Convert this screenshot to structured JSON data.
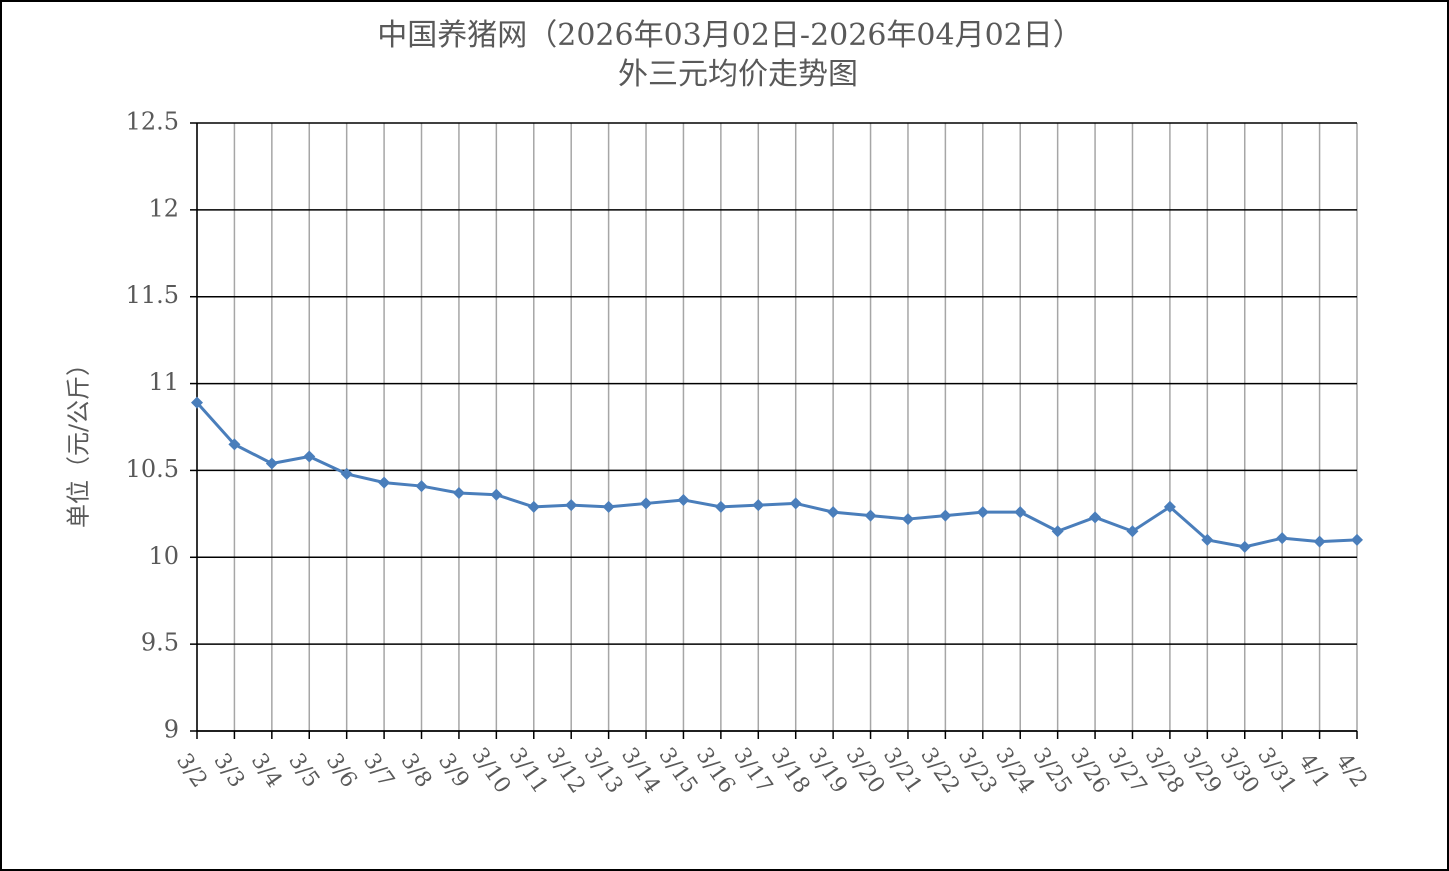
{
  "chart_data": {
    "type": "line",
    "title": "中国养猪网（2026年03月02日-2026年04月02日）",
    "subtitle": "外三元均价走势图",
    "y_label": "单位（元/公斤）",
    "categories": [
      "3/2",
      "3/3",
      "3/4",
      "3/5",
      "3/6",
      "3/7",
      "3/8",
      "3/9",
      "3/10",
      "3/11",
      "3/12",
      "3/13",
      "3/14",
      "3/15",
      "3/16",
      "3/17",
      "3/18",
      "3/19",
      "3/20",
      "3/21",
      "3/22",
      "3/23",
      "3/24",
      "3/25",
      "3/26",
      "3/27",
      "3/28",
      "3/29",
      "3/30",
      "3/31",
      "4/1",
      "4/2"
    ],
    "series": [
      {
        "color": "#4a7ebb",
        "values": [
          10.89,
          10.65,
          10.54,
          10.58,
          10.48,
          10.43,
          10.41,
          10.37,
          10.36,
          10.29,
          10.3,
          10.29,
          10.31,
          10.33,
          10.29,
          10.3,
          10.31,
          10.26,
          10.24,
          10.22,
          10.24,
          10.26,
          10.26,
          10.15,
          10.23,
          10.15,
          10.29,
          10.1,
          10.06,
          10.11,
          10.09,
          10.1
        ]
      }
    ],
    "ylim": [
      9,
      12.5
    ],
    "yticks": [
      9,
      9.5,
      10,
      10.5,
      11,
      11.5,
      12,
      12.5
    ],
    "grid": true
  }
}
